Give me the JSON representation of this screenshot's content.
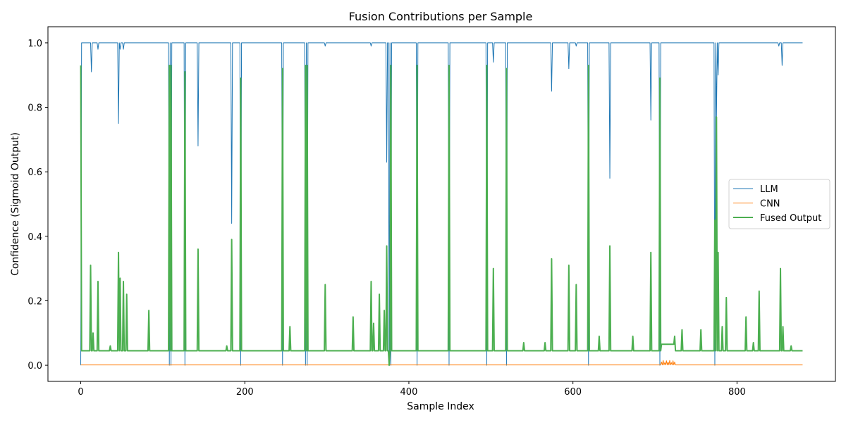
{
  "chart_data": {
    "type": "line",
    "title": "Fusion Contributions per Sample",
    "xlabel": "Sample Index",
    "ylabel": "Confidence (Sigmoid Output)",
    "xlim": [
      -40,
      920
    ],
    "ylim": [
      -0.05,
      1.05
    ],
    "xticks": [
      0,
      200,
      400,
      600,
      800
    ],
    "yticks": [
      0.0,
      0.2,
      0.4,
      0.6,
      0.8,
      1.0
    ],
    "grid": false,
    "legend": "center-right",
    "series": [
      {
        "name": "LLM",
        "color": "#1f77b4",
        "width": 1,
        "baseline": 1.0,
        "spikes": [
          [
            0,
            0.0
          ],
          [
            13,
            0.91
          ],
          [
            21,
            0.98
          ],
          [
            46,
            0.75
          ],
          [
            48,
            0.98
          ],
          [
            52,
            0.98
          ],
          [
            108,
            0.0
          ],
          [
            110,
            0.0
          ],
          [
            127,
            0.0
          ],
          [
            143,
            0.68
          ],
          [
            184,
            0.44
          ],
          [
            195,
            0.0
          ],
          [
            246,
            0.0
          ],
          [
            274,
            0.0
          ],
          [
            276,
            0.0
          ],
          [
            298,
            0.99
          ],
          [
            354,
            0.99
          ],
          [
            373,
            0.63
          ],
          [
            376,
            0.0
          ],
          [
            378,
            0.0
          ],
          [
            410,
            0.0
          ],
          [
            449,
            0.0
          ],
          [
            495,
            0.0
          ],
          [
            503,
            0.94
          ],
          [
            519,
            0.0
          ],
          [
            574,
            0.85
          ],
          [
            595,
            0.92
          ],
          [
            604,
            0.99
          ],
          [
            619,
            0.0
          ],
          [
            645,
            0.58
          ],
          [
            695,
            0.76
          ],
          [
            706,
            0.0
          ],
          [
            773,
            0.0
          ],
          [
            775,
            0.77
          ],
          [
            777,
            0.9
          ],
          [
            851,
            0.99
          ],
          [
            855,
            0.93
          ]
        ],
        "x_end": 880
      },
      {
        "name": "CNN",
        "color": "#ff7f0e",
        "width": 1,
        "baseline": 0.001,
        "spikes": [
          [
            708,
            0.01
          ],
          [
            710,
            0.015
          ],
          [
            712,
            0.008
          ],
          [
            714,
            0.014
          ],
          [
            716,
            0.01
          ],
          [
            718,
            0.015
          ],
          [
            720,
            0.008
          ],
          [
            722,
            0.014
          ],
          [
            724,
            0.01
          ]
        ],
        "x_end": 880
      },
      {
        "name": "Fused Output",
        "color": "#4caf50",
        "width": 2,
        "baseline": 0.045,
        "spikes": [
          [
            0,
            0.93
          ],
          [
            12,
            0.31
          ],
          [
            15,
            0.1
          ],
          [
            21,
            0.26
          ],
          [
            36,
            0.06
          ],
          [
            46,
            0.35
          ],
          [
            48,
            0.27
          ],
          [
            52,
            0.26
          ],
          [
            56,
            0.22
          ],
          [
            83,
            0.17
          ],
          [
            108,
            0.93
          ],
          [
            110,
            0.93
          ],
          [
            127,
            0.91
          ],
          [
            143,
            0.36
          ],
          [
            178,
            0.06
          ],
          [
            184,
            0.39
          ],
          [
            195,
            0.89
          ],
          [
            246,
            0.92
          ],
          [
            255,
            0.12
          ],
          [
            274,
            0.93
          ],
          [
            276,
            0.93
          ],
          [
            298,
            0.25
          ],
          [
            332,
            0.15
          ],
          [
            354,
            0.26
          ],
          [
            357,
            0.13
          ],
          [
            364,
            0.22
          ],
          [
            370,
            0.17
          ],
          [
            373,
            0.37
          ],
          [
            376,
            0.0
          ],
          [
            378,
            0.93
          ],
          [
            410,
            0.93
          ],
          [
            449,
            0.93
          ],
          [
            495,
            0.93
          ],
          [
            503,
            0.3
          ],
          [
            519,
            0.92
          ],
          [
            540,
            0.07
          ],
          [
            566,
            0.07
          ],
          [
            574,
            0.33
          ],
          [
            595,
            0.31
          ],
          [
            604,
            0.25
          ],
          [
            619,
            0.93
          ],
          [
            632,
            0.09
          ],
          [
            645,
            0.37
          ],
          [
            673,
            0.09
          ],
          [
            695,
            0.35
          ],
          [
            706,
            0.89
          ],
          [
            724,
            0.09
          ],
          [
            733,
            0.11
          ],
          [
            756,
            0.11
          ],
          [
            773,
            0.45
          ],
          [
            775,
            0.77
          ],
          [
            777,
            0.35
          ],
          [
            782,
            0.12
          ],
          [
            787,
            0.21
          ],
          [
            811,
            0.15
          ],
          [
            820,
            0.07
          ],
          [
            827,
            0.23
          ],
          [
            853,
            0.3
          ],
          [
            856,
            0.12
          ],
          [
            866,
            0.06
          ]
        ],
        "plateaus": [
          [
            708,
            724,
            0.065
          ]
        ],
        "x_end": 880
      }
    ]
  }
}
